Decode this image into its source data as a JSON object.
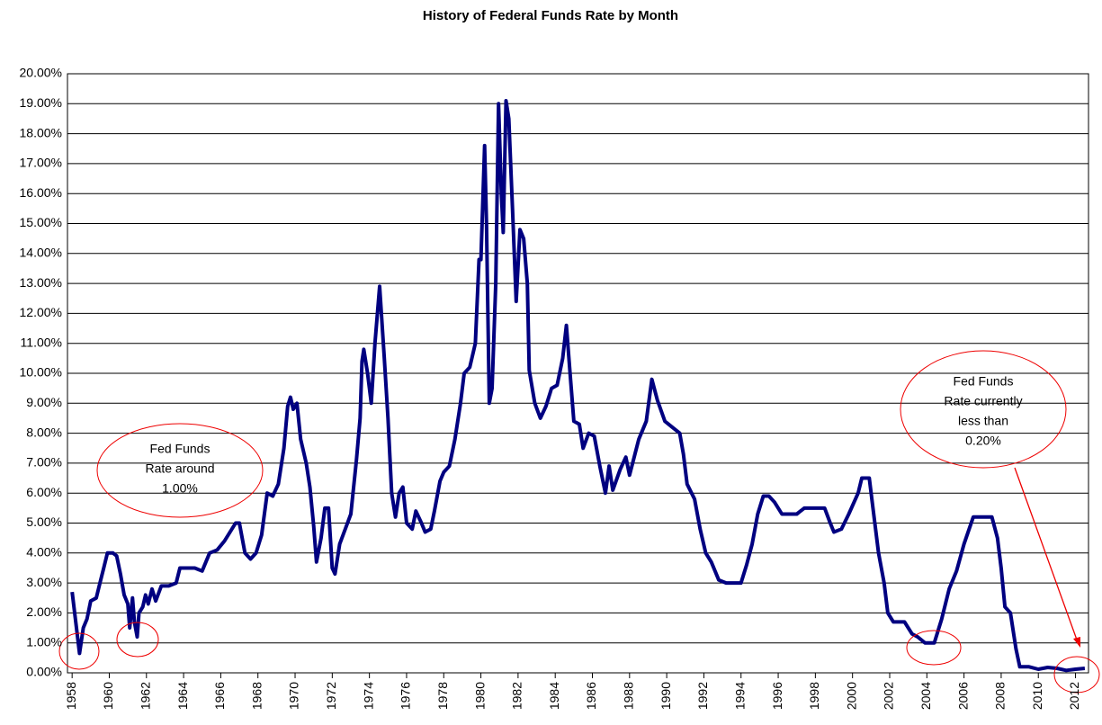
{
  "chart_data": {
    "type": "line",
    "title": "History of Federal Funds Rate by Month",
    "series": [
      {
        "name": "Federal Funds Rate",
        "color": "#000080",
        "x": [
          1958.0,
          1958.4,
          1958.6,
          1958.8,
          1959.0,
          1959.3,
          1959.5,
          1959.7,
          1959.9,
          1960.2,
          1960.4,
          1960.6,
          1960.8,
          1961.0,
          1961.1,
          1961.25,
          1961.35,
          1961.5,
          1961.6,
          1961.8,
          1961.95,
          1962.1,
          1962.3,
          1962.5,
          1962.8,
          1963.2,
          1963.6,
          1963.8,
          1964.2,
          1964.6,
          1965.0,
          1965.4,
          1965.8,
          1966.2,
          1966.8,
          1967.0,
          1967.3,
          1967.6,
          1967.9,
          1968.2,
          1968.5,
          1968.8,
          1969.1,
          1969.4,
          1969.6,
          1969.75,
          1969.9,
          1970.1,
          1970.3,
          1970.6,
          1970.8,
          1971.0,
          1971.15,
          1971.4,
          1971.6,
          1971.8,
          1972.0,
          1972.15,
          1972.4,
          1972.7,
          1973.0,
          1973.3,
          1973.5,
          1973.6,
          1973.7,
          1973.9,
          1974.1,
          1974.3,
          1974.55,
          1974.8,
          1975.0,
          1975.2,
          1975.4,
          1975.6,
          1975.8,
          1976.0,
          1976.3,
          1976.5,
          1976.8,
          1977.0,
          1977.3,
          1977.5,
          1977.8,
          1978.0,
          1978.3,
          1978.6,
          1978.9,
          1979.1,
          1979.4,
          1979.7,
          1979.9,
          1980.0,
          1980.2,
          1980.3,
          1980.45,
          1980.6,
          1980.8,
          1980.95,
          1981.1,
          1981.2,
          1981.35,
          1981.5,
          1981.7,
          1981.9,
          1982.1,
          1982.3,
          1982.5,
          1982.6,
          1982.9,
          1983.2,
          1983.5,
          1983.8,
          1984.1,
          1984.4,
          1984.6,
          1984.8,
          1985.0,
          1985.3,
          1985.5,
          1985.8,
          1986.1,
          1986.4,
          1986.7,
          1986.9,
          1987.1,
          1987.5,
          1987.8,
          1988.0,
          1988.5,
          1988.9,
          1989.2,
          1989.5,
          1989.9,
          1990.3,
          1990.7,
          1990.9,
          1991.1,
          1991.5,
          1991.8,
          1992.1,
          1992.4,
          1992.8,
          1993.2,
          1993.6,
          1994.0,
          1994.3,
          1994.6,
          1994.9,
          1995.2,
          1995.5,
          1995.8,
          1996.2,
          1996.6,
          1997.0,
          1997.4,
          1998.0,
          1998.5,
          1998.8,
          1999.0,
          1999.4,
          1999.8,
          2000.3,
          2000.5,
          2000.9,
          2001.1,
          2001.4,
          2001.7,
          2001.9,
          2002.2,
          2002.8,
          2003.2,
          2003.5,
          2003.9,
          2004.4,
          2004.8,
          2005.2,
          2005.6,
          2006.0,
          2006.5,
          2007.0,
          2007.5,
          2007.8,
          2008.0,
          2008.2,
          2008.5,
          2008.8,
          2009.0,
          2009.5,
          2010.0,
          2010.5,
          2011.0,
          2011.5,
          2012.0,
          2012.5
        ],
        "values": [
          2.7,
          0.65,
          1.5,
          1.8,
          2.4,
          2.5,
          3.0,
          3.5,
          4.0,
          4.0,
          3.9,
          3.3,
          2.6,
          2.3,
          1.5,
          2.5,
          1.7,
          1.2,
          2.0,
          2.2,
          2.6,
          2.3,
          2.8,
          2.4,
          2.9,
          2.9,
          3.0,
          3.5,
          3.5,
          3.5,
          3.4,
          4.0,
          4.1,
          4.4,
          5.0,
          5.0,
          4.0,
          3.8,
          4.0,
          4.6,
          6.0,
          5.9,
          6.3,
          7.5,
          8.9,
          9.2,
          8.8,
          9.0,
          7.8,
          7.0,
          6.2,
          4.9,
          3.7,
          4.5,
          5.5,
          5.5,
          3.5,
          3.3,
          4.3,
          4.8,
          5.3,
          7.1,
          8.5,
          10.4,
          10.8,
          10.0,
          9.0,
          11.0,
          12.9,
          10.5,
          8.5,
          6.0,
          5.2,
          6.0,
          6.2,
          5.0,
          4.8,
          5.4,
          5.0,
          4.7,
          4.8,
          5.4,
          6.4,
          6.7,
          6.9,
          7.8,
          9.0,
          10.0,
          10.2,
          11.0,
          13.8,
          13.8,
          17.6,
          15.0,
          9.0,
          9.5,
          13.0,
          19.0,
          16.0,
          14.7,
          19.1,
          18.5,
          15.5,
          12.4,
          14.8,
          14.5,
          13.0,
          10.1,
          9.0,
          8.5,
          8.9,
          9.5,
          9.6,
          10.5,
          11.6,
          10.0,
          8.4,
          8.3,
          7.5,
          8.0,
          7.9,
          6.9,
          6.0,
          6.9,
          6.1,
          6.8,
          7.2,
          6.6,
          7.8,
          8.4,
          9.8,
          9.1,
          8.4,
          8.2,
          8.0,
          7.3,
          6.3,
          5.8,
          4.8,
          4.0,
          3.7,
          3.1,
          3.0,
          3.0,
          3.0,
          3.6,
          4.3,
          5.3,
          5.9,
          5.9,
          5.7,
          5.3,
          5.3,
          5.3,
          5.5,
          5.5,
          5.5,
          5.0,
          4.7,
          4.8,
          5.3,
          6.0,
          6.5,
          6.5,
          5.5,
          4.0,
          3.0,
          2.0,
          1.7,
          1.7,
          1.3,
          1.2,
          1.0,
          1.0,
          1.8,
          2.8,
          3.4,
          4.3,
          5.2,
          5.2,
          5.2,
          4.5,
          3.5,
          2.2,
          2.0,
          0.8,
          0.2,
          0.2,
          0.12,
          0.18,
          0.15,
          0.08,
          0.12,
          0.15
        ]
      }
    ],
    "xlim": [
      1957.75,
      2012.7
    ],
    "xticks": [
      1958,
      1960,
      1962,
      1964,
      1966,
      1968,
      1970,
      1972,
      1974,
      1976,
      1978,
      1980,
      1982,
      1984,
      1986,
      1988,
      1990,
      1992,
      1994,
      1996,
      1998,
      2000,
      2002,
      2004,
      2006,
      2008,
      2010,
      2012
    ],
    "ylim": [
      0,
      20
    ],
    "yticks": [
      {
        "value": 0,
        "label": "0.00%"
      },
      {
        "value": 1,
        "label": "1.00%"
      },
      {
        "value": 2,
        "label": "2.00%"
      },
      {
        "value": 3,
        "label": "3.00%"
      },
      {
        "value": 4,
        "label": "4.00%"
      },
      {
        "value": 5,
        "label": "5.00%"
      },
      {
        "value": 6,
        "label": "6.00%"
      },
      {
        "value": 7,
        "label": "7.00%"
      },
      {
        "value": 8,
        "label": "8.00%"
      },
      {
        "value": 9,
        "label": "9.00%"
      },
      {
        "value": 10,
        "label": "10.00%"
      },
      {
        "value": 11,
        "label": "11.00%"
      },
      {
        "value": 12,
        "label": "12.00%"
      },
      {
        "value": 13,
        "label": "13.00%"
      },
      {
        "value": 14,
        "label": "14.00%"
      },
      {
        "value": 15,
        "label": "15.00%"
      },
      {
        "value": 16,
        "label": "16.00%"
      },
      {
        "value": 17,
        "label": "17.00%"
      },
      {
        "value": 18,
        "label": "18.00%"
      },
      {
        "value": 19,
        "label": "19.00%"
      },
      {
        "value": 20,
        "label": "20.00%"
      }
    ],
    "grid": true,
    "annotations": [
      {
        "lines": [
          "Fed Funds",
          "Rate around",
          "1.00%"
        ]
      },
      {
        "lines": [
          "Fed Funds",
          "Rate currently",
          "less than",
          "0.20%"
        ]
      }
    ]
  }
}
